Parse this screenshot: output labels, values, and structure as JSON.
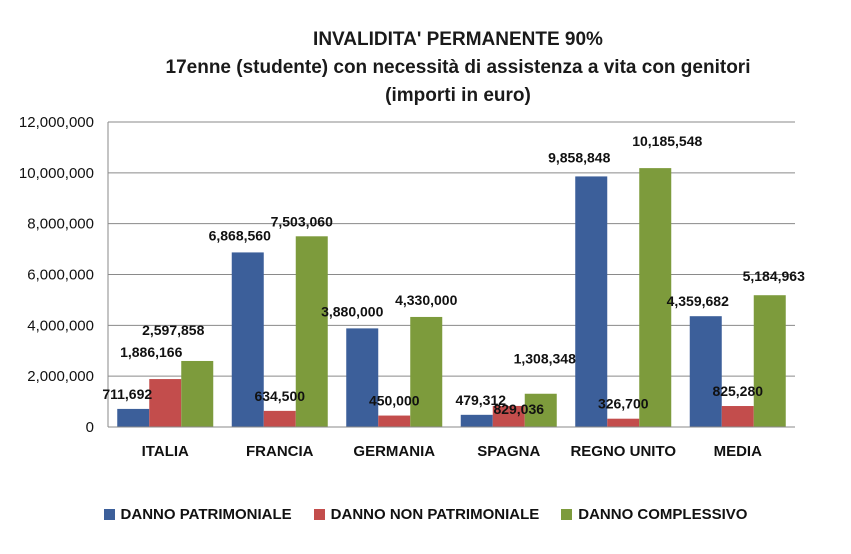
{
  "chart_data": {
    "type": "bar",
    "title": "INVALIDITA' PERMANENTE  90%",
    "subtitle_1": "17enne (studente) con necessità di assistenza a vita con genitori",
    "subtitle_2": "(importi in euro)",
    "categories": [
      "ITALIA",
      "FRANCIA",
      "GERMANIA",
      "SPAGNA",
      "REGNO UNITO",
      "MEDIA"
    ],
    "series": [
      {
        "name": "DANNO PATRIMONIALE",
        "color": "#3c5f9a",
        "values": [
          711692,
          6868560,
          3880000,
          479312,
          9858848,
          4359682
        ],
        "labels": [
          "711,692",
          "6,868,560",
          "3,880,000",
          "479,312",
          "9,858,848",
          "4,359,682"
        ]
      },
      {
        "name": "DANNO NON PATRIMONIALE",
        "color": "#c34d4c",
        "values": [
          1886166,
          634500,
          450000,
          829036,
          326700,
          825280
        ],
        "labels": [
          "1,886,166",
          "634,500",
          "450,000",
          "829,036",
          "326,700",
          "825,280"
        ]
      },
      {
        "name": "DANNO COMPLESSIVO",
        "color": "#7d9b3c",
        "values": [
          2597858,
          7503060,
          4330000,
          1308348,
          10185548,
          5184963
        ],
        "labels": [
          "2,597,858",
          "7,503,060",
          "4,330,000",
          "1,308,348",
          "10,185,548",
          "5,184,963"
        ]
      }
    ],
    "ylim": [
      0,
      12000000
    ],
    "yticks": [
      0,
      2000000,
      4000000,
      6000000,
      8000000,
      10000000,
      12000000
    ],
    "ytick_labels": [
      "0",
      "2,000,000",
      "4,000,000",
      "6,000,000",
      "8,000,000",
      "10,000,000",
      "12,000,000"
    ],
    "grid": true,
    "legend_position": "bottom"
  }
}
